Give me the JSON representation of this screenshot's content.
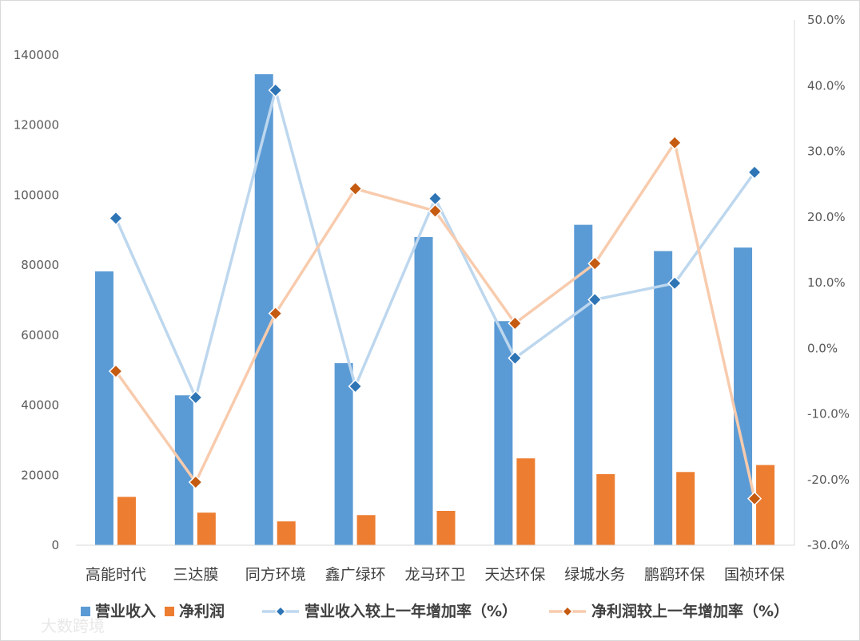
{
  "chart_data": {
    "type": "bar",
    "combo": "bar + line (secondary axis)",
    "categories": [
      "高能时代",
      "三达膜",
      "同方环境",
      "鑫广绿环",
      "龙马环卫",
      "天达环保",
      "绿城水务",
      "鹏鹞环保",
      "国祯环保"
    ],
    "series": [
      {
        "name": "营业收入",
        "type": "bar",
        "axis": "left",
        "color": "#5b9bd5",
        "values": [
          78200,
          42800,
          134500,
          52000,
          88000,
          64000,
          91500,
          84000,
          85000
        ]
      },
      {
        "name": "净利润",
        "type": "bar",
        "axis": "left",
        "color": "#ed7d31",
        "values": [
          13800,
          9300,
          6800,
          8600,
          9800,
          24800,
          20300,
          20900,
          22900
        ]
      },
      {
        "name": "营业收入较上一年增加率（%）",
        "type": "line",
        "axis": "right",
        "color": "#bdd7ee",
        "marker_color": "#2e75b6",
        "values": [
          19.8,
          -7.5,
          39.3,
          -5.8,
          22.8,
          -1.5,
          7.4,
          9.9,
          26.8
        ]
      },
      {
        "name": "净利润较上一年增加率（%）",
        "type": "line",
        "axis": "right",
        "color": "#f8cbad",
        "marker_color": "#c55a11",
        "values": [
          -3.5,
          -20.4,
          5.3,
          24.3,
          20.9,
          3.8,
          12.9,
          31.3,
          -22.9
        ]
      }
    ],
    "y_left": {
      "range": [
        0,
        150000
      ],
      "ticks": [
        0,
        20000,
        40000,
        60000,
        80000,
        100000,
        120000,
        140000
      ],
      "tick_labels": [
        "0",
        "20000",
        "40000",
        "60000",
        "80000",
        "100000",
        "120000",
        "140000"
      ]
    },
    "y_right": {
      "range": [
        -30,
        50
      ],
      "ticks": [
        -30,
        -20,
        -10,
        0,
        10,
        20,
        30,
        40,
        50
      ],
      "tick_labels": [
        "-30.0%",
        "-20.0%",
        "-10.0%",
        "0.0%",
        "10.0%",
        "20.0%",
        "30.0%",
        "40.0%",
        "50.0%"
      ]
    },
    "grid": false,
    "legend_position": "bottom"
  },
  "watermark": "大数跨境"
}
